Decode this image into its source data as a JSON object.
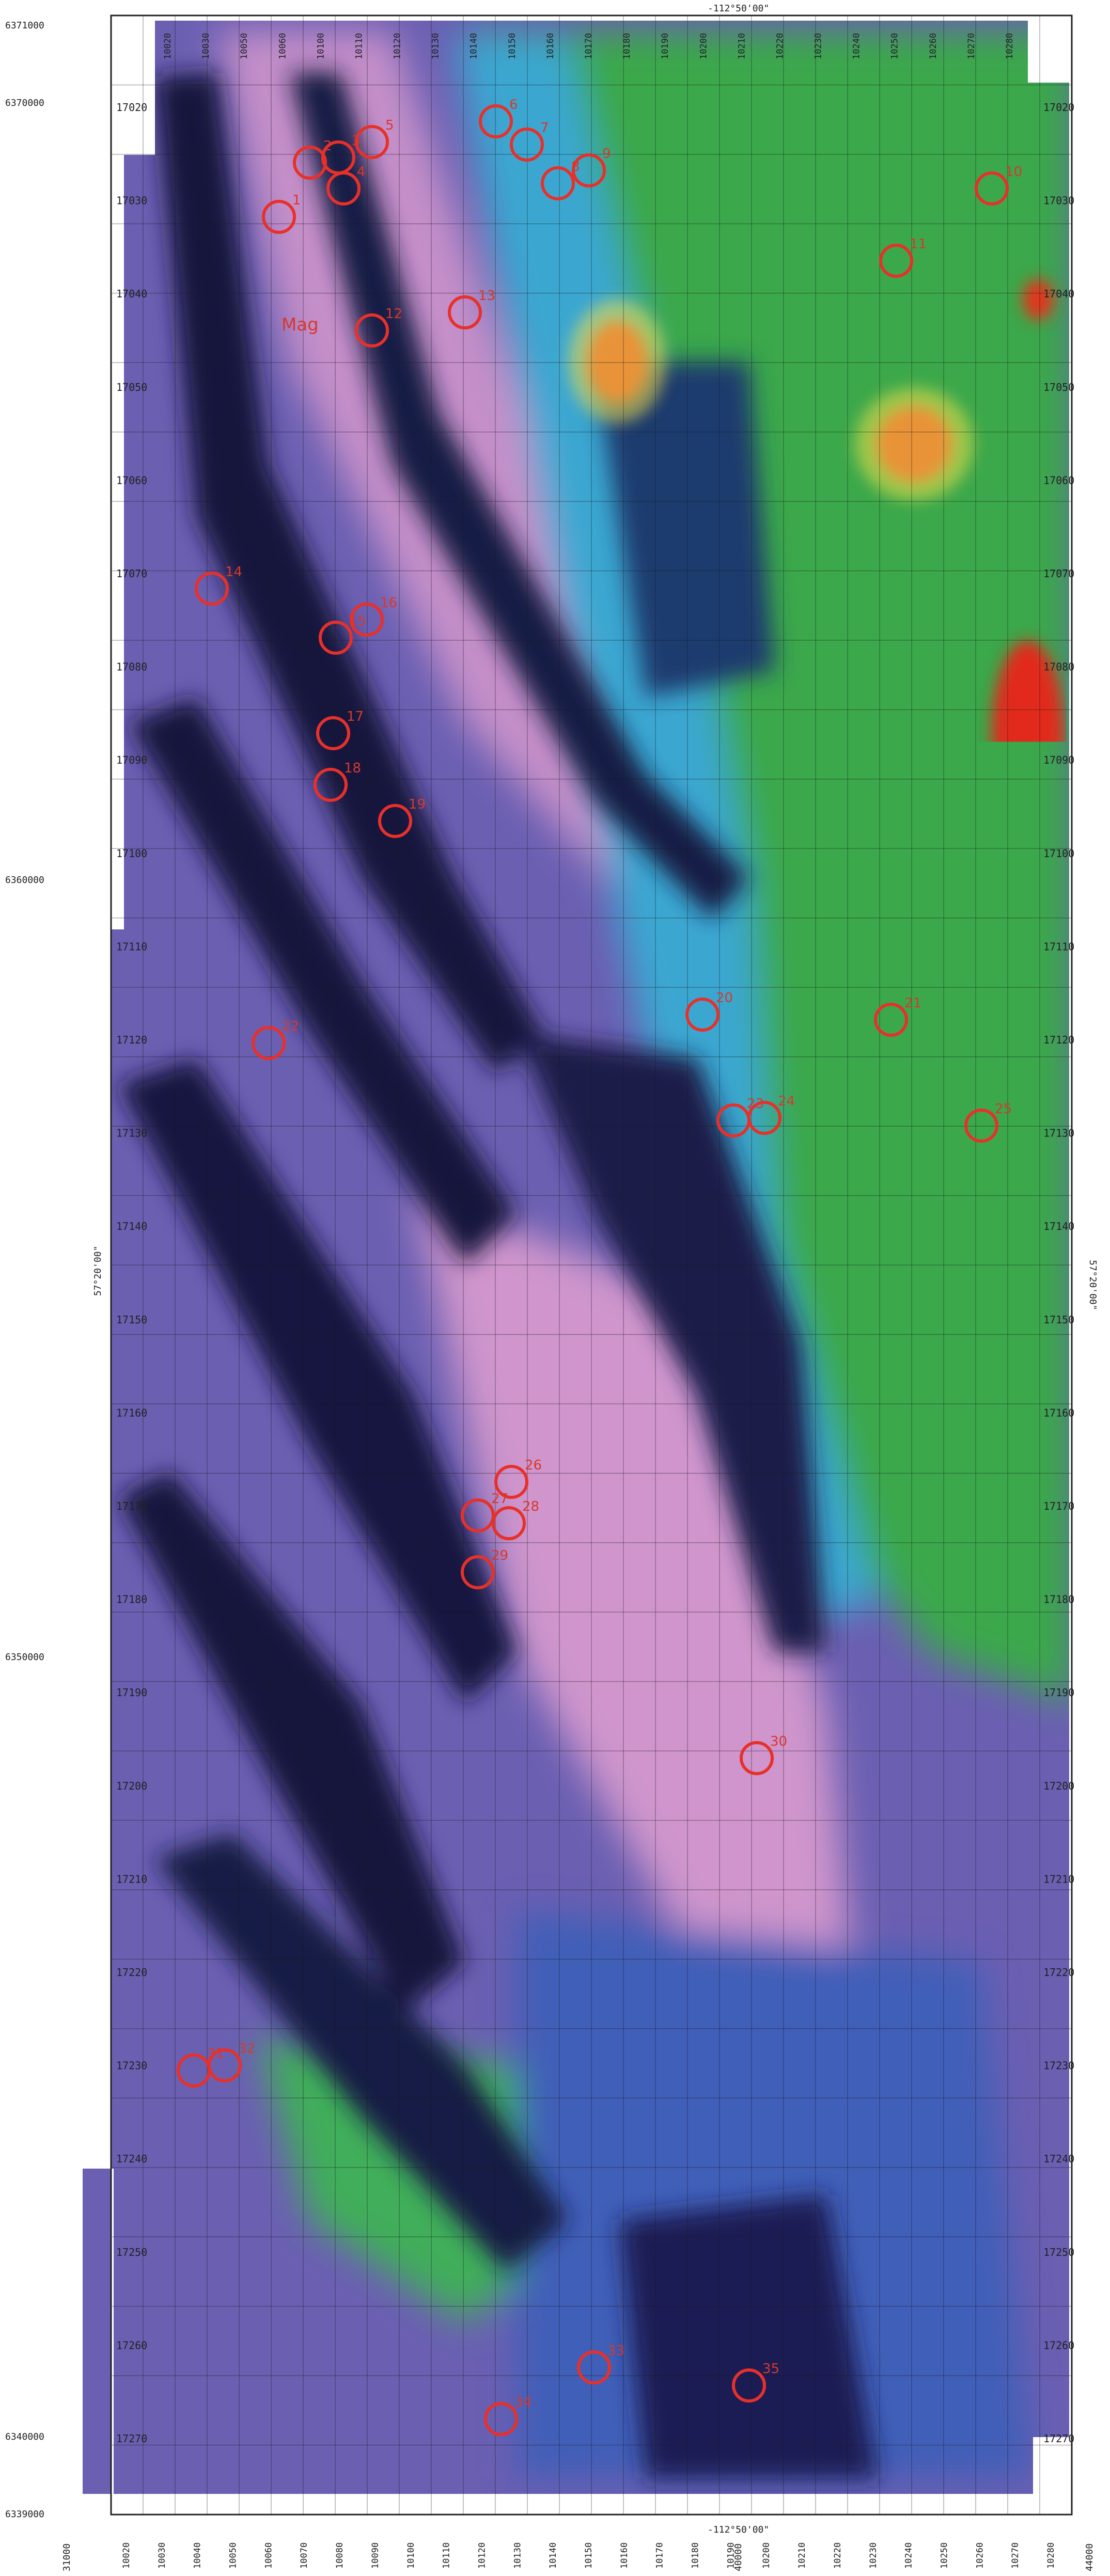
{
  "map": {
    "title": "",
    "coordinates": {
      "top_lon": "-112°50'00\"",
      "bottom_lon": "-112°50'00\"",
      "left_lat": "57°20'00\"",
      "right_lat": "57°20'00\"",
      "northings_left": [
        "6371000",
        "6370000",
        "6360000",
        "6350000",
        "6340000",
        "6339000"
      ],
      "bottom_left_corner": "31000",
      "bottom_right_corner": "44000",
      "bottom_mid_easting": "40000"
    },
    "line_labels_top": [
      "10020",
      "10030",
      "10050",
      "10060",
      "10100",
      "10110",
      "10120",
      "10130",
      "10140",
      "10150",
      "10160",
      "10170",
      "10180",
      "10190",
      "10200",
      "10210",
      "10220",
      "10230",
      "10240",
      "10250",
      "10260",
      "10270",
      "10280"
    ],
    "line_labels_bottom": [
      "10020",
      "10030",
      "10040",
      "10050",
      "10060",
      "10070",
      "10080",
      "10090",
      "10100",
      "10110",
      "10120",
      "10130",
      "10140",
      "10150",
      "10160",
      "10170",
      "10180",
      "10190",
      "10200",
      "10210",
      "10220",
      "10230",
      "10240",
      "10250",
      "10260",
      "10270",
      "10280"
    ],
    "tie_lines_right": [
      "17020",
      "17030",
      "17040",
      "17050",
      "17060",
      "17070",
      "17080",
      "17090",
      "17100",
      "17110",
      "17120",
      "17130",
      "17140",
      "17150",
      "17160",
      "17170",
      "17180",
      "17190",
      "17200",
      "17210",
      "17220",
      "17230",
      "17240",
      "17250",
      "17260",
      "17270"
    ],
    "tie_lines_left": [
      "17020",
      "17030",
      "17040",
      "17050",
      "17060",
      "17070",
      "17080",
      "17090",
      "17100",
      "17110",
      "17120",
      "17130",
      "17140",
      "17150",
      "17160",
      "17170",
      "17180",
      "17190",
      "17200",
      "17210",
      "17220",
      "17230",
      "17240",
      "17250",
      "17260",
      "17270"
    ],
    "annotations": [
      "1",
      "2",
      "3",
      "4",
      "5",
      "6",
      "7",
      "8",
      "9",
      "10",
      "11",
      "12",
      "13",
      "14",
      "15",
      "16",
      "17",
      "18",
      "19",
      "20",
      "21",
      "22",
      "23",
      "24",
      "25",
      "26",
      "27",
      "28",
      "29",
      "30",
      "31",
      "32",
      "33",
      "34",
      "35",
      "36",
      "Mag"
    ],
    "colors": {
      "red": "#e8231a",
      "yellow": "#f0e04a",
      "green": "#3fae3a",
      "cyan": "#3fb6d8",
      "blue": "#2d4fa8",
      "navy": "#14173f",
      "purple": "#6d5bb0",
      "pink": "#c98ac8",
      "circle": "#e8302a"
    }
  }
}
